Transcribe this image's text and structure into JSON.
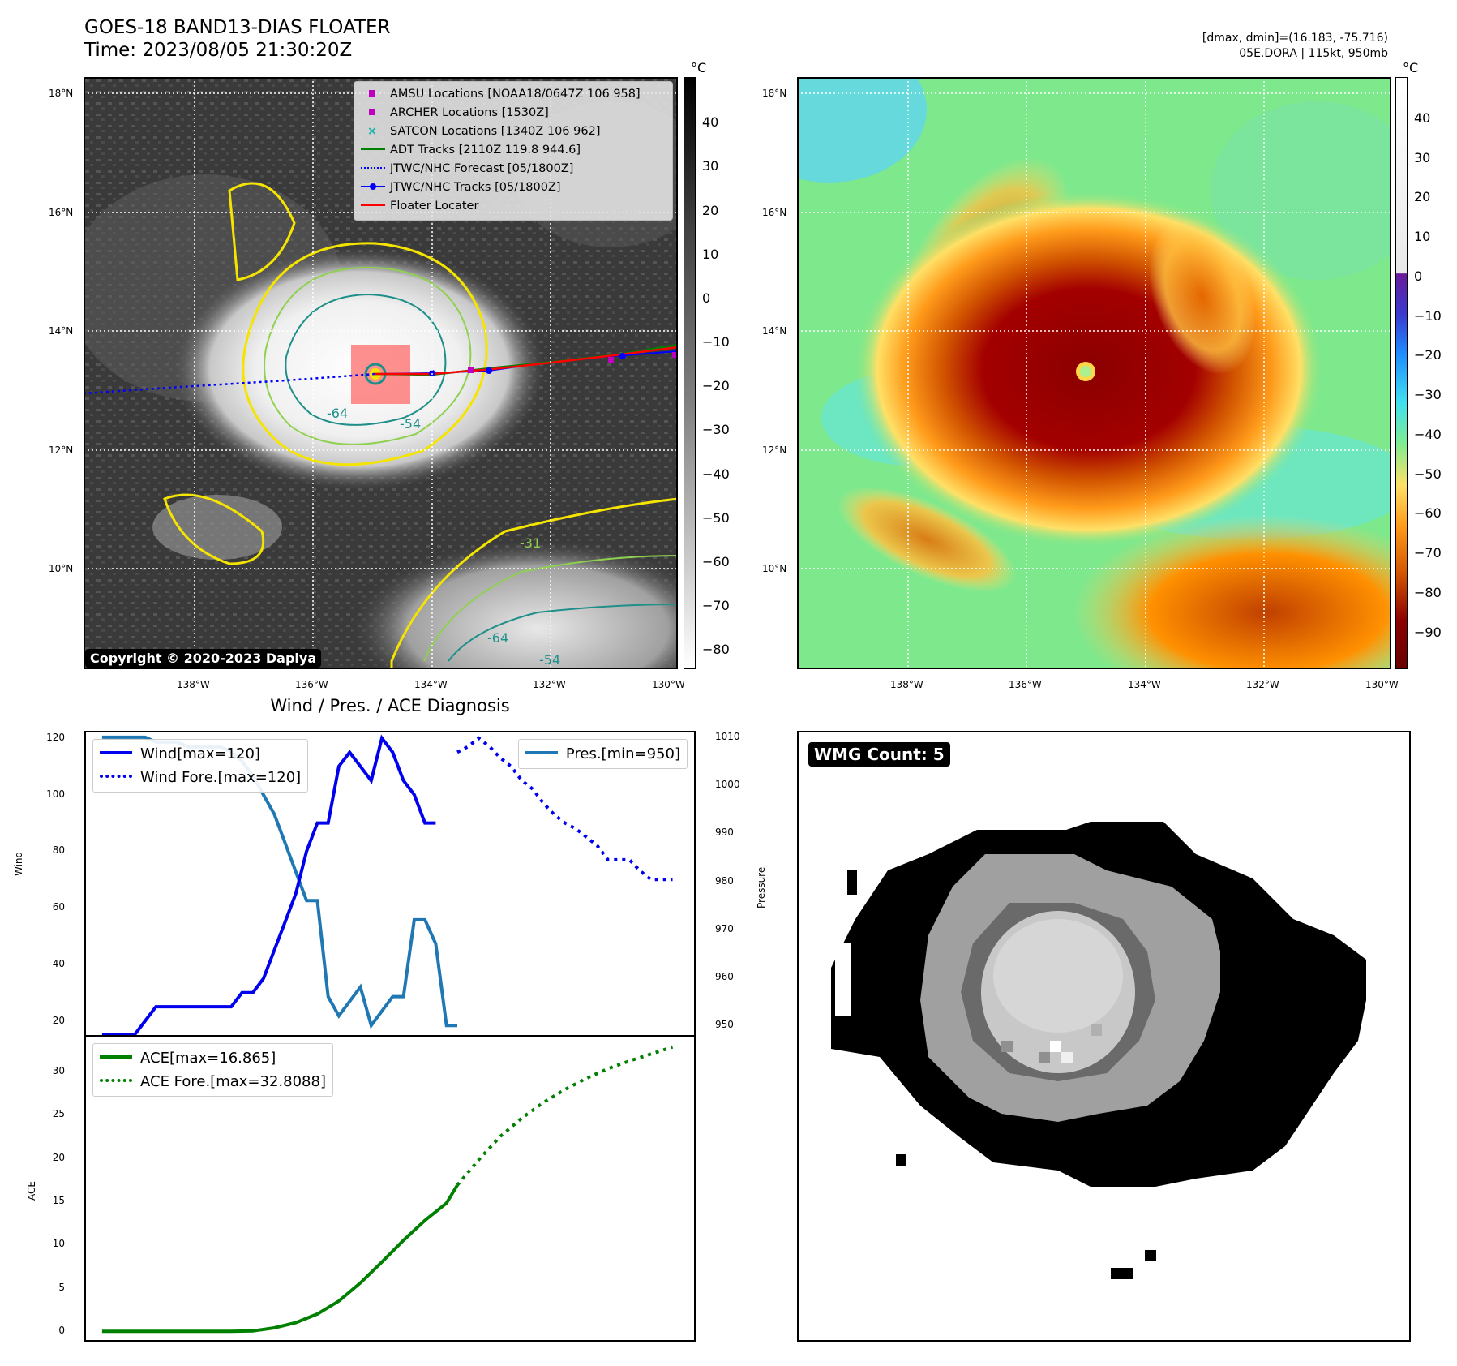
{
  "header": {
    "title_line1": "GOES-18 BAND13-DIAS FLOATER",
    "title_line2": "Time: 2023/08/05 21:30:20Z",
    "dmax_dmin": "[dmax, dmin]=(16.183, -75.716)",
    "storm_info": "05E.DORA | 115kt, 950mb"
  },
  "ir_panel": {
    "lat_ticks": [
      "18°N",
      "16°N",
      "14°N",
      "12°N",
      "10°N"
    ],
    "lon_ticks": [
      "138°W",
      "136°W",
      "134°W",
      "132°W",
      "130°W"
    ],
    "copyright": "Copyright © 2020-2023 Dapiya",
    "legend": [
      {
        "label": "AMSU Locations [NOAA18/0647Z 106 958]",
        "marker": "square",
        "color": "#c000c0"
      },
      {
        "label": "ARCHER Locations [1530Z]",
        "marker": "square",
        "color": "#c000c0"
      },
      {
        "label": "SATCON Locations [1340Z 106 962]",
        "marker": "x",
        "color": "#17b3a8"
      },
      {
        "label": "ADT Tracks [2110Z 119.8 944.6]",
        "marker": "line",
        "color": "#008000"
      },
      {
        "label": "JTWC/NHC Forecast [05/1800Z]",
        "marker": "dotted",
        "color": "#0000ff"
      },
      {
        "label": "JTWC/NHC Tracks [05/1800Z]",
        "marker": "line-dot",
        "color": "#0000ff"
      },
      {
        "label": "Floater Locater",
        "marker": "line",
        "color": "#ff0000"
      }
    ],
    "contour_labels": [
      "-64",
      "-54",
      "-31",
      "-64",
      "-54"
    ],
    "colorbar": {
      "unit": "°C",
      "ticks": [
        "40",
        "30",
        "20",
        "10",
        "0",
        "−10",
        "−20",
        "−30",
        "−40",
        "−50",
        "−60",
        "−70",
        "−80"
      ]
    }
  },
  "color_panel": {
    "lat_ticks": [
      "18°N",
      "16°N",
      "14°N",
      "12°N",
      "10°N"
    ],
    "lon_ticks": [
      "138°W",
      "136°W",
      "134°W",
      "132°W",
      "130°W"
    ],
    "colorbar": {
      "unit": "°C",
      "ticks": [
        "40",
        "30",
        "20",
        "10",
        "0",
        "−10",
        "−20",
        "−30",
        "−40",
        "−50",
        "−60",
        "−70",
        "−80",
        "−90"
      ]
    }
  },
  "diagnosis_panel": {
    "title": "Wind / Pres. / ACE Diagnosis",
    "wind_ylabel": "Wind",
    "pres_ylabel": "Pressure",
    "ace_ylabel": "ACE",
    "wind_legend": [
      "Wind[max=120]",
      "Wind Fore.[max=120]"
    ],
    "pres_legend": [
      "Pres.[min=950]"
    ],
    "ace_legend": [
      "ACE[max=16.865]",
      "ACE Fore.[max=32.8088]"
    ],
    "wind_ticks": [
      "120",
      "100",
      "80",
      "60",
      "40",
      "20"
    ],
    "pres_ticks": [
      "1010",
      "1000",
      "990",
      "980",
      "970",
      "960",
      "950"
    ],
    "ace_ticks": [
      "30",
      "25",
      "20",
      "15",
      "10",
      "5",
      "0"
    ]
  },
  "wmg_panel": {
    "label": "WMG Count: 5"
  },
  "chart_data": [
    {
      "type": "line",
      "title": "Wind / Pres. / ACE Diagnosis",
      "ylabel": "Wind",
      "ylim": [
        15,
        122
      ],
      "series": [
        {
          "name": "Wind[max=120]",
          "color": "#0000ee",
          "style": "solid",
          "x": [
            0,
            1,
            2,
            3,
            4,
            5,
            6,
            7,
            8,
            9,
            10,
            11,
            12,
            13,
            14,
            15,
            16,
            17,
            18,
            19,
            20,
            21,
            22,
            23,
            24,
            25,
            26,
            27,
            28,
            29,
            30,
            31
          ],
          "values": [
            15,
            15,
            15,
            15,
            20,
            25,
            25,
            25,
            25,
            25,
            25,
            25,
            25,
            30,
            30,
            35,
            45,
            55,
            65,
            80,
            90,
            90,
            110,
            115,
            110,
            105,
            120,
            115,
            105,
            100,
            90,
            90
          ]
        },
        {
          "name": "Wind Fore.[max=120]",
          "color": "#0000ee",
          "style": "dotted",
          "x": [
            33,
            34,
            35,
            36,
            37,
            38,
            39,
            40,
            41,
            42,
            43,
            44,
            45,
            46,
            47,
            48,
            49,
            50,
            51,
            52,
            53
          ],
          "values": [
            115,
            117,
            120,
            117,
            113,
            110,
            105,
            102,
            97,
            93,
            90,
            88,
            85,
            82,
            77,
            77,
            77,
            73,
            70,
            70,
            70
          ]
        }
      ]
    },
    {
      "type": "line",
      "ylabel": "Pressure",
      "ylim": [
        948,
        1011
      ],
      "series": [
        {
          "name": "Pres.[min=950]",
          "color": "#1f77b4",
          "style": "solid",
          "x": [
            0,
            1,
            2,
            3,
            4,
            5,
            6,
            7,
            8,
            9,
            10,
            11,
            12,
            13,
            14,
            15,
            16,
            17,
            18,
            19,
            20,
            21,
            22,
            23,
            24,
            25,
            26,
            27,
            28,
            29,
            30,
            31,
            32,
            33
          ],
          "values": [
            1010,
            1010,
            1010,
            1010,
            1010,
            1009,
            1009,
            1009,
            1008,
            1008,
            1008,
            1008,
            1007,
            1005,
            1002,
            998,
            994,
            988,
            982,
            976,
            976,
            956,
            952,
            955,
            958,
            950,
            953,
            956,
            956,
            972,
            972,
            967,
            950,
            950
          ]
        }
      ]
    },
    {
      "type": "line",
      "ylabel": "ACE",
      "ylim": [
        -1,
        34
      ],
      "series": [
        {
          "name": "ACE[max=16.865]",
          "color": "#008000",
          "style": "solid",
          "x": [
            0,
            2,
            4,
            6,
            8,
            10,
            12,
            14,
            16,
            18,
            20,
            22,
            24,
            26,
            28,
            30,
            32,
            33
          ],
          "values": [
            0,
            0,
            0,
            0,
            0,
            0,
            0,
            0.05,
            0.4,
            1.0,
            2.0,
            3.5,
            5.6,
            8.0,
            10.5,
            12.8,
            14.8,
            16.865
          ]
        },
        {
          "name": "ACE Fore.[max=32.8088]",
          "color": "#008000",
          "style": "dotted",
          "x": [
            33,
            35,
            37,
            39,
            41,
            43,
            45,
            47,
            49,
            51,
            53
          ],
          "values": [
            16.865,
            19.8,
            22.5,
            24.6,
            26.4,
            27.9,
            29.2,
            30.3,
            31.2,
            32.0,
            32.8088
          ]
        }
      ]
    }
  ]
}
